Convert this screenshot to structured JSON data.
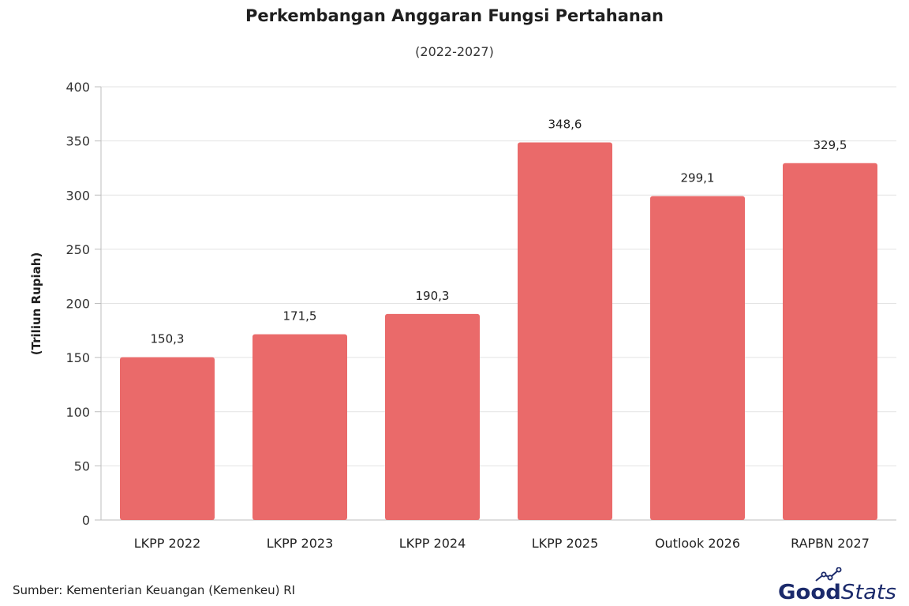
{
  "chart_data": {
    "type": "bar",
    "title": "Perkembangan Anggaran Fungsi Pertahanan",
    "subtitle": "(2022-2027)",
    "ylabel": "(Triliun Rupiah)",
    "xlabel": "",
    "categories": [
      "LKPP 2022",
      "LKPP 2023",
      "LKPP 2024",
      "LKPP 2025",
      "Outlook 2026",
      "RAPBN 2027"
    ],
    "values": [
      150.3,
      171.5,
      190.3,
      348.6,
      299.1,
      329.5
    ],
    "value_labels": [
      "150,3",
      "171,5",
      "190,3",
      "348,6",
      "299,1",
      "329,5"
    ],
    "ylim": [
      0,
      400
    ],
    "yticks": [
      0,
      50,
      100,
      150,
      200,
      250,
      300,
      350,
      400
    ],
    "grid": true,
    "legend": "none",
    "bar_color": "#EA6A6A",
    "grid_color": "#E3E3E3"
  },
  "footer": {
    "source": "Sumber: Kementerian Keuangan (Kemenkeu) RI",
    "brand_good": "Good",
    "brand_stats": "Stats",
    "brand_color": "#1B2A6B"
  }
}
